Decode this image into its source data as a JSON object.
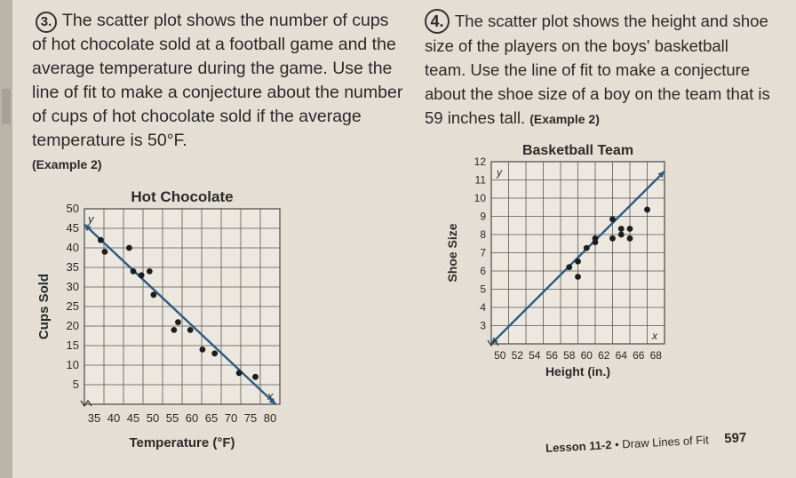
{
  "problem3": {
    "number": "3.",
    "text": "The scatter plot shows the number of cups of hot chocolate sold at a football game and the average temperature during the game. Use the line of fit to make a conjecture about the number of cups of hot chocolate sold if the average temperature is 50°F.",
    "example": "(Example 2)"
  },
  "problem4": {
    "number": "4.",
    "text": "The scatter plot shows the height and shoe size of the players on the boys' basketball team. Use the line of fit to make a conjecture about the shoe size of a boy on the team that is 59 inches tall.",
    "example": "(Example 2)"
  },
  "chart_data": [
    {
      "type": "scatter",
      "title": "Hot Chocolate",
      "xlabel": "Temperature (°F)",
      "ylabel": "Cups Sold",
      "x_axis_letter": "x",
      "y_axis_letter": "y",
      "x_ticks": [
        "35",
        "40",
        "45",
        "50",
        "55",
        "60",
        "65",
        "70",
        "75",
        "80"
      ],
      "y_ticks": [
        "5",
        "10",
        "15",
        "20",
        "25",
        "30",
        "35",
        "40",
        "45",
        "50"
      ],
      "xlim": [
        32,
        80
      ],
      "ylim": [
        0,
        50
      ],
      "points": [
        [
          36,
          42
        ],
        [
          37,
          39
        ],
        [
          43,
          40
        ],
        [
          44,
          34
        ],
        [
          46,
          33
        ],
        [
          48,
          34
        ],
        [
          49,
          28
        ],
        [
          54,
          19
        ],
        [
          55,
          21
        ],
        [
          58,
          19
        ],
        [
          61,
          14
        ],
        [
          64,
          13
        ],
        [
          70,
          8
        ],
        [
          74,
          7
        ]
      ],
      "line_of_fit": [
        [
          32,
          46
        ],
        [
          79,
          0
        ]
      ],
      "grid": true,
      "colors": {
        "points": "#1d1d1d",
        "line": "#2c5a80",
        "grid": "#555555"
      }
    },
    {
      "type": "scatter",
      "title": "Basketball Team",
      "xlabel": "Height (in.)",
      "ylabel": "Shoe Size",
      "x_axis_letter": "x",
      "y_axis_letter": "y",
      "x_ticks": [
        "50",
        "52",
        "54",
        "56",
        "58",
        "60",
        "62",
        "64",
        "66",
        "68"
      ],
      "y_ticks": [
        "3",
        "4",
        "5",
        "6",
        "7",
        "8",
        "9",
        "10",
        "11",
        "12"
      ],
      "xlim": [
        48,
        68
      ],
      "ylim": [
        2.5,
        12
      ],
      "points": [
        [
          57,
          6.5
        ],
        [
          58,
          6.8
        ],
        [
          58,
          6
        ],
        [
          59,
          7.5
        ],
        [
          60,
          8
        ],
        [
          60,
          7.8
        ],
        [
          62,
          8
        ],
        [
          62,
          9
        ],
        [
          63,
          8.2
        ],
        [
          63,
          8.5
        ],
        [
          64,
          8
        ],
        [
          64,
          8.5
        ],
        [
          66,
          9.5
        ]
      ],
      "line_of_fit": [
        [
          48,
          2.5
        ],
        [
          68,
          11.5
        ]
      ],
      "grid": true,
      "colors": {
        "points": "#1d1d1d",
        "line": "#2c5a80",
        "grid": "#555555"
      }
    }
  ],
  "footer": {
    "lesson": "Lesson 11-2",
    "bullet": "•",
    "topic": "Draw Lines of Fit",
    "page": "597"
  }
}
